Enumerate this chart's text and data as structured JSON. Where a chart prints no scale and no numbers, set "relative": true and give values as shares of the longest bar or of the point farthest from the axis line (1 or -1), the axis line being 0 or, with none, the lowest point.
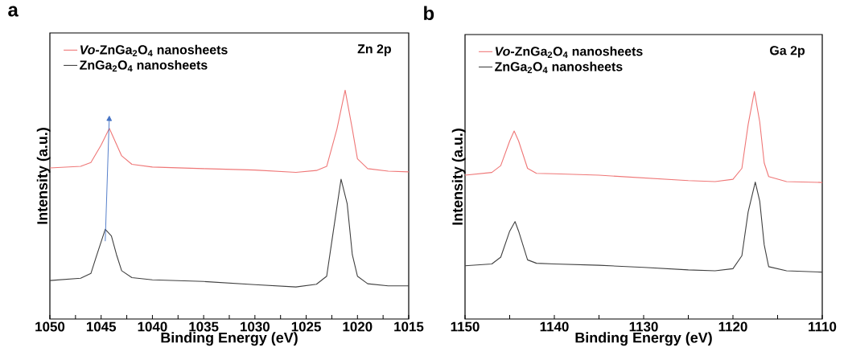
{
  "chart_data": [
    {
      "type": "line",
      "title": "a",
      "xlabel": "Binding Energy (eV)",
      "ylabel": "Intensity (a.u.)",
      "relative": true,
      "legend": "top left",
      "annotations": [
        "Zn 2p"
      ],
      "xlim": [
        1050,
        1015
      ],
      "xticks": [
        1050,
        {
          "value": 1047.5,
          "label": null
        },
        1045,
        {
          "value": 1042.5,
          "label": null
        },
        1040,
        {
          "value": 1037.5,
          "label": null
        },
        1035,
        {
          "value": 1032.5,
          "label": null
        },
        1030,
        {
          "value": 1027.5,
          "label": null
        },
        1025,
        {
          "value": 1022.5,
          "label": null
        },
        1020,
        {
          "value": 1017.5,
          "label": null
        },
        1015
      ],
      "series": [
        {
          "name": "*Vo*-ZnGa$_{2}$O$_{4}$ nanosheets",
          "color": "#ef7777",
          "x": [
            1050,
            1047,
            1046,
            1045,
            1044.2,
            1043,
            1042,
            1040,
            1035,
            1030,
            1026,
            1024,
            1023,
            1022,
            1021.2,
            1020.5,
            1020,
            1019,
            1017,
            1015
          ],
          "values": [
            0.66,
            0.667,
            0.684,
            0.76,
            0.833,
            0.713,
            0.676,
            0.664,
            0.657,
            0.651,
            0.641,
            0.649,
            0.667,
            0.83,
            1.0,
            0.83,
            0.7,
            0.657,
            0.646,
            0.643
          ]
        },
        {
          "name": "ZnGa$_{2}$O$_{4}$ nanosheets",
          "color": "#404040",
          "x": [
            1050,
            1047,
            1046,
            1045.5,
            1044.6,
            1044,
            1043.5,
            1043,
            1042,
            1040,
            1035,
            1030,
            1026,
            1024,
            1023,
            1022.5,
            1021.6,
            1021,
            1020.5,
            1020,
            1019,
            1017,
            1015
          ],
          "values": [
            0.168,
            0.178,
            0.199,
            0.269,
            0.392,
            0.363,
            0.281,
            0.211,
            0.181,
            0.171,
            0.164,
            0.15,
            0.14,
            0.152,
            0.187,
            0.339,
            0.611,
            0.503,
            0.281,
            0.187,
            0.154,
            0.145,
            0.145
          ]
        }
      ]
    },
    {
      "type": "line",
      "title": "b",
      "xlabel": "Binding Energy (eV)",
      "ylabel": "Intensity (a.u.)",
      "relative": true,
      "legend": "top left",
      "annotations": [
        "Ga 2p"
      ],
      "xlim": [
        1150,
        1110
      ],
      "xticks": [
        1150,
        {
          "value": 1145,
          "label": null
        },
        1140,
        {
          "value": 1135,
          "label": null
        },
        1130,
        {
          "value": 1125,
          "label": null
        },
        1120,
        {
          "value": 1115,
          "label": null
        },
        1110
      ],
      "series": [
        {
          "name": "*Vo*-ZnGa$_{2}$O$_{4}$ nanosheets",
          "color": "#ef7777",
          "x": [
            1150,
            1147,
            1146,
            1145,
            1144.5,
            1144,
            1143,
            1142,
            1140,
            1135,
            1130,
            1125,
            1122,
            1120,
            1119,
            1118.3,
            1117.6,
            1117,
            1116.5,
            1116,
            1114,
            1110
          ],
          "values": [
            0.632,
            0.644,
            0.674,
            0.782,
            0.826,
            0.782,
            0.662,
            0.64,
            0.638,
            0.632,
            0.62,
            0.608,
            0.604,
            0.614,
            0.662,
            0.854,
            1.0,
            0.866,
            0.686,
            0.626,
            0.604,
            0.6
          ]
        },
        {
          "name": "ZnGa$_{2}$O$_{4}$ nanosheets",
          "color": "#404040",
          "x": [
            1150,
            1147,
            1146,
            1145,
            1144.4,
            1144,
            1143,
            1142,
            1140,
            1135,
            1130,
            1125,
            1122,
            1120,
            1119,
            1118.3,
            1117.5,
            1117,
            1116.5,
            1116,
            1114,
            1110
          ],
          "values": [
            0.234,
            0.242,
            0.272,
            0.386,
            0.428,
            0.386,
            0.26,
            0.245,
            0.242,
            0.236,
            0.227,
            0.216,
            0.212,
            0.221,
            0.278,
            0.47,
            0.602,
            0.518,
            0.326,
            0.23,
            0.212,
            0.206
          ]
        }
      ]
    }
  ]
}
